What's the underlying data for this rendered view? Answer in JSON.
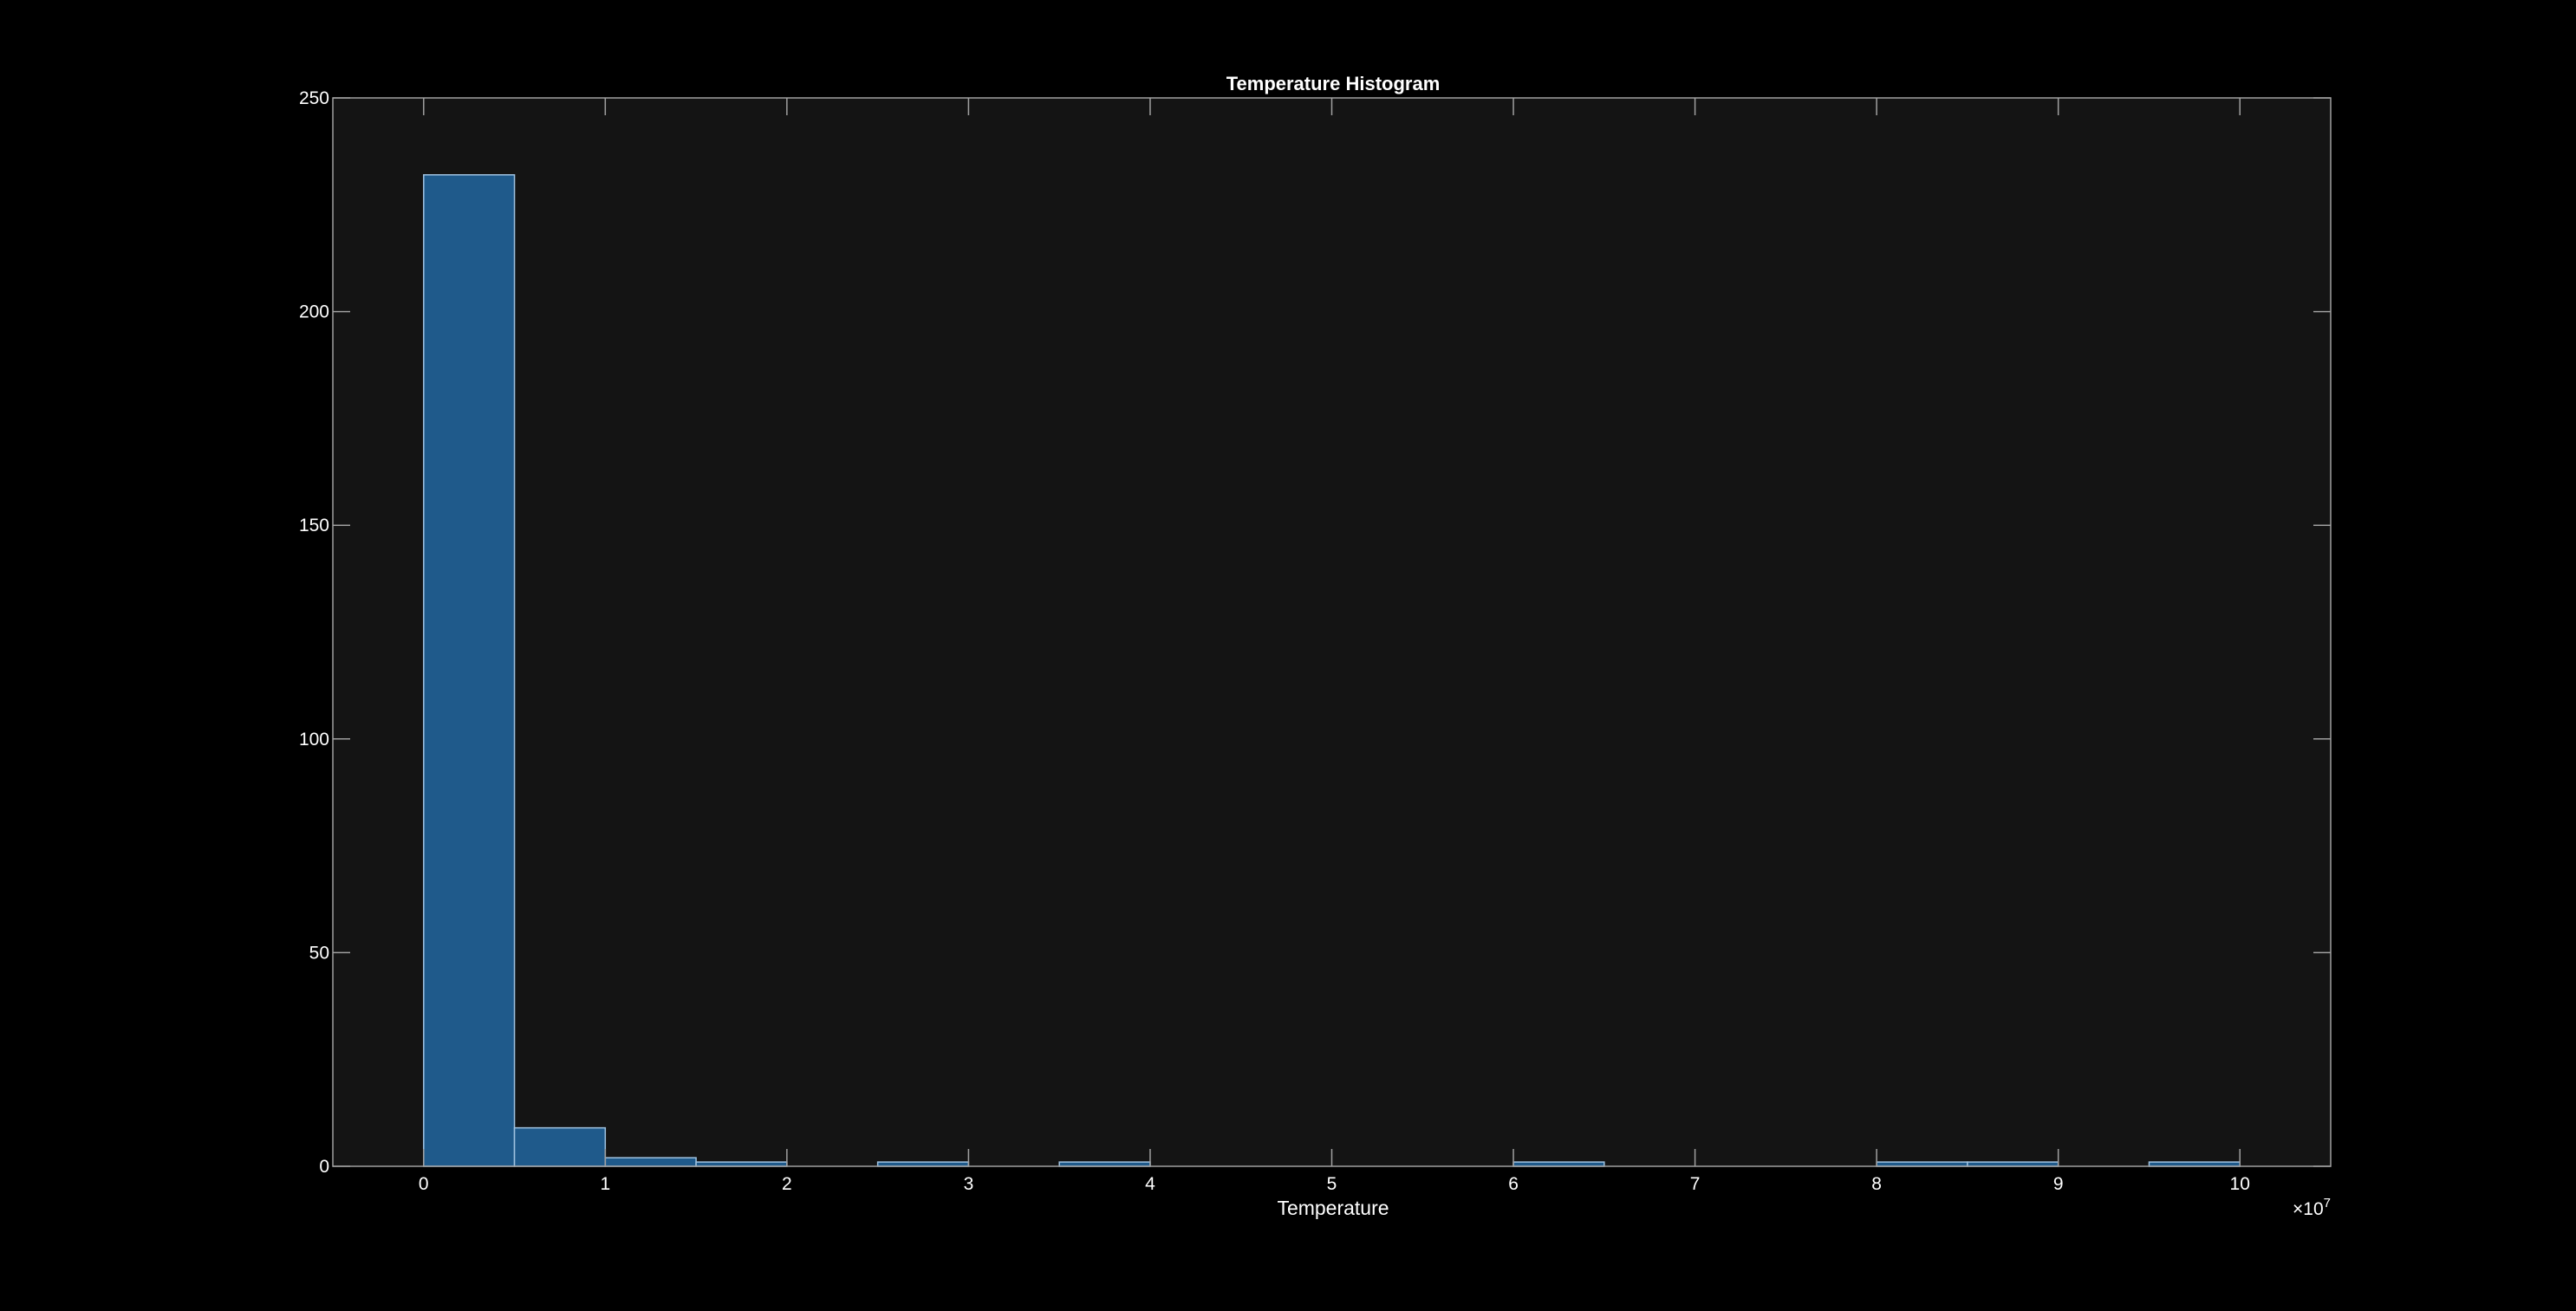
{
  "chart_data": {
    "type": "bar",
    "subtype": "histogram",
    "title": "Temperature Histogram",
    "xlabel": "Temperature",
    "ylabel": "",
    "x_exponent_label": "×10",
    "x_exponent_power": "7",
    "x_scale": 10000000,
    "xlim": [
      -5000000,
      105000000
    ],
    "ylim": [
      0,
      250
    ],
    "bin_width": 5000000,
    "bin_edges": [
      0,
      5000000,
      10000000,
      15000000,
      20000000,
      25000000,
      30000000,
      35000000,
      40000000,
      45000000,
      50000000,
      55000000,
      60000000,
      65000000,
      70000000,
      75000000,
      80000000,
      85000000,
      90000000,
      95000000,
      100000000
    ],
    "values": [
      232,
      9,
      2,
      1,
      0,
      1,
      0,
      1,
      0,
      0,
      0,
      0,
      1,
      0,
      0,
      0,
      1,
      1,
      0,
      1
    ],
    "x_ticks": [
      "0",
      "1",
      "2",
      "3",
      "4",
      "5",
      "6",
      "7",
      "8",
      "9",
      "10"
    ],
    "y_ticks": [
      "0",
      "50",
      "100",
      "150",
      "200",
      "250"
    ],
    "grid": false,
    "legend": "none",
    "colors": {
      "figure_background": "#000000",
      "axes_background": "#141414",
      "bar_fill": "#1f5a8b",
      "bar_edge": "#9fc2e0",
      "axis_line": "#a0a0a0",
      "text": "#ffffff"
    }
  }
}
